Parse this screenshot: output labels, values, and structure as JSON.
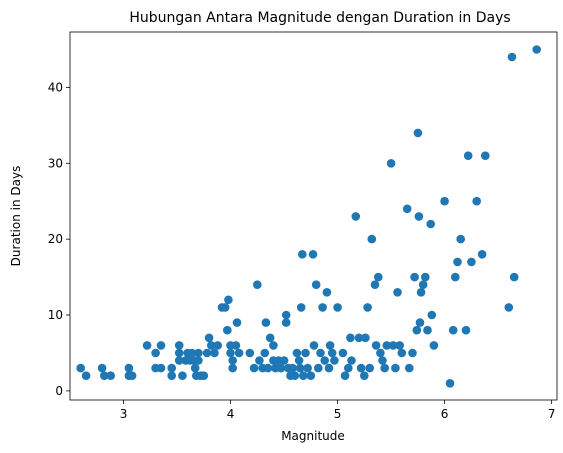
{
  "chart_data": {
    "type": "scatter",
    "title": "Hubungan Antara Magnitude dengan Duration in Days",
    "xlabel": "Magnitude",
    "ylabel": "Duration in Days",
    "xlim": [
      2.5,
      7.05
    ],
    "ylim": [
      -1.2,
      47.3
    ],
    "xticks": [
      3,
      4,
      5,
      6,
      7
    ],
    "yticks": [
      0,
      10,
      20,
      30,
      40
    ],
    "grid": false,
    "legend": "none",
    "marker_color": "#1f77b4",
    "series": [
      {
        "points": [
          [
            2.6,
            3
          ],
          [
            2.65,
            2
          ],
          [
            2.8,
            3
          ],
          [
            2.82,
            2
          ],
          [
            2.88,
            2
          ],
          [
            3.05,
            3
          ],
          [
            3.05,
            2
          ],
          [
            3.08,
            2
          ],
          [
            3.22,
            6
          ],
          [
            3.3,
            5
          ],
          [
            3.3,
            3
          ],
          [
            3.35,
            6
          ],
          [
            3.35,
            3
          ],
          [
            3.45,
            2
          ],
          [
            3.45,
            3
          ],
          [
            3.52,
            6
          ],
          [
            3.52,
            5
          ],
          [
            3.52,
            4
          ],
          [
            3.55,
            2
          ],
          [
            3.58,
            4
          ],
          [
            3.6,
            5
          ],
          [
            3.62,
            4
          ],
          [
            3.64,
            5
          ],
          [
            3.66,
            4
          ],
          [
            3.67,
            3
          ],
          [
            3.68,
            2
          ],
          [
            3.7,
            5
          ],
          [
            3.7,
            4
          ],
          [
            3.72,
            2
          ],
          [
            3.75,
            2
          ],
          [
            3.78,
            5
          ],
          [
            3.8,
            7
          ],
          [
            3.82,
            6
          ],
          [
            3.85,
            5
          ],
          [
            3.88,
            6
          ],
          [
            3.92,
            11
          ],
          [
            3.95,
            11
          ],
          [
            3.97,
            8
          ],
          [
            3.98,
            12
          ],
          [
            4.0,
            5
          ],
          [
            4.0,
            6
          ],
          [
            4.02,
            4
          ],
          [
            4.02,
            3
          ],
          [
            4.05,
            6
          ],
          [
            4.06,
            9
          ],
          [
            4.08,
            5
          ],
          [
            4.18,
            5
          ],
          [
            4.22,
            3
          ],
          [
            4.25,
            14
          ],
          [
            4.27,
            4
          ],
          [
            4.3,
            3
          ],
          [
            4.32,
            5
          ],
          [
            4.33,
            9
          ],
          [
            4.35,
            3
          ],
          [
            4.37,
            7
          ],
          [
            4.4,
            6
          ],
          [
            4.4,
            4
          ],
          [
            4.42,
            3
          ],
          [
            4.45,
            4
          ],
          [
            4.47,
            3
          ],
          [
            4.5,
            4
          ],
          [
            4.52,
            10
          ],
          [
            4.52,
            9
          ],
          [
            4.54,
            3
          ],
          [
            4.56,
            2
          ],
          [
            4.58,
            3
          ],
          [
            4.6,
            2
          ],
          [
            4.62,
            5
          ],
          [
            4.64,
            4
          ],
          [
            4.65,
            3
          ],
          [
            4.66,
            11
          ],
          [
            4.67,
            18
          ],
          [
            4.68,
            2
          ],
          [
            4.7,
            5
          ],
          [
            4.72,
            3
          ],
          [
            4.75,
            2
          ],
          [
            4.77,
            18
          ],
          [
            4.78,
            6
          ],
          [
            4.8,
            14
          ],
          [
            4.82,
            3
          ],
          [
            4.84,
            5
          ],
          [
            4.86,
            11
          ],
          [
            4.88,
            4
          ],
          [
            4.9,
            13
          ],
          [
            4.92,
            3
          ],
          [
            4.93,
            6
          ],
          [
            4.95,
            5
          ],
          [
            4.97,
            4
          ],
          [
            5.0,
            11
          ],
          [
            5.05,
            5
          ],
          [
            5.07,
            2
          ],
          [
            5.1,
            3
          ],
          [
            5.12,
            7
          ],
          [
            5.13,
            4
          ],
          [
            5.17,
            23
          ],
          [
            5.2,
            7
          ],
          [
            5.22,
            3
          ],
          [
            5.25,
            2
          ],
          [
            5.26,
            7
          ],
          [
            5.28,
            11
          ],
          [
            5.3,
            3
          ],
          [
            5.32,
            20
          ],
          [
            5.35,
            14
          ],
          [
            5.36,
            6
          ],
          [
            5.38,
            15
          ],
          [
            5.4,
            5
          ],
          [
            5.42,
            4
          ],
          [
            5.44,
            3
          ],
          [
            5.46,
            6
          ],
          [
            5.5,
            30
          ],
          [
            5.52,
            6
          ],
          [
            5.54,
            3
          ],
          [
            5.56,
            13
          ],
          [
            5.58,
            6
          ],
          [
            5.6,
            5
          ],
          [
            5.65,
            24
          ],
          [
            5.67,
            3
          ],
          [
            5.7,
            5
          ],
          [
            5.72,
            15
          ],
          [
            5.74,
            8
          ],
          [
            5.75,
            34
          ],
          [
            5.76,
            23
          ],
          [
            5.77,
            9
          ],
          [
            5.78,
            13
          ],
          [
            5.8,
            14
          ],
          [
            5.82,
            15
          ],
          [
            5.84,
            8
          ],
          [
            5.87,
            22
          ],
          [
            5.88,
            10
          ],
          [
            5.9,
            6
          ],
          [
            6.0,
            25
          ],
          [
            6.05,
            1
          ],
          [
            6.08,
            8
          ],
          [
            6.1,
            15
          ],
          [
            6.12,
            17
          ],
          [
            6.15,
            20
          ],
          [
            6.2,
            8
          ],
          [
            6.22,
            31
          ],
          [
            6.25,
            17
          ],
          [
            6.3,
            25
          ],
          [
            6.35,
            18
          ],
          [
            6.38,
            31
          ],
          [
            6.6,
            11
          ],
          [
            6.63,
            44
          ],
          [
            6.65,
            15
          ],
          [
            6.86,
            45
          ]
        ]
      }
    ]
  }
}
